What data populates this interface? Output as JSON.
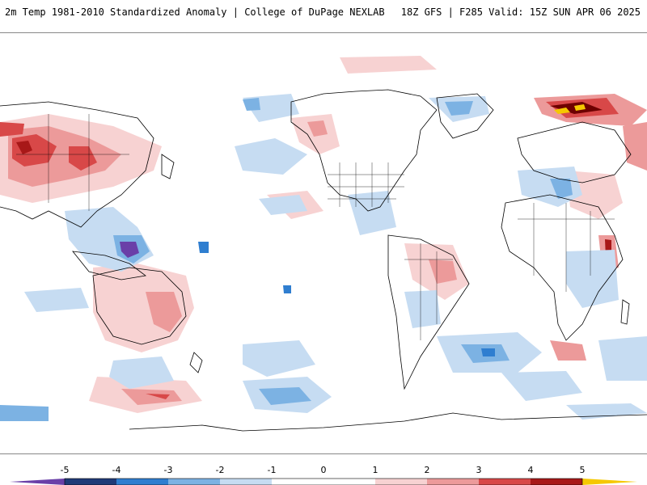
{
  "header": {
    "title_left": "2m Temp 1981-2010 Standardized Anomaly | College of DuPage NEXLAB",
    "title_right": "18Z GFS | F285 Valid: 15Z SUN APR 06 2025"
  },
  "legend": {
    "ticks": [
      "-5",
      "-4",
      "-3",
      "-2",
      "-1",
      "0",
      "1",
      "2",
      "3",
      "4",
      "5"
    ],
    "colors": {
      "n5": "#6a3fa8",
      "n4": "#1f3a78",
      "n3": "#2f7ed0",
      "n2": "#7cb2e3",
      "n1": "#c6dcf2",
      "zero": "#ffffff",
      "p1": "#f7d2d2",
      "p2": "#ec9a9a",
      "p3": "#d84848",
      "p4": "#a81818",
      "p5": "#6e0000",
      "extreme": "#f5c800"
    }
  },
  "map": {
    "land_outline_color": "#000000",
    "background_color": "#ffffff"
  }
}
